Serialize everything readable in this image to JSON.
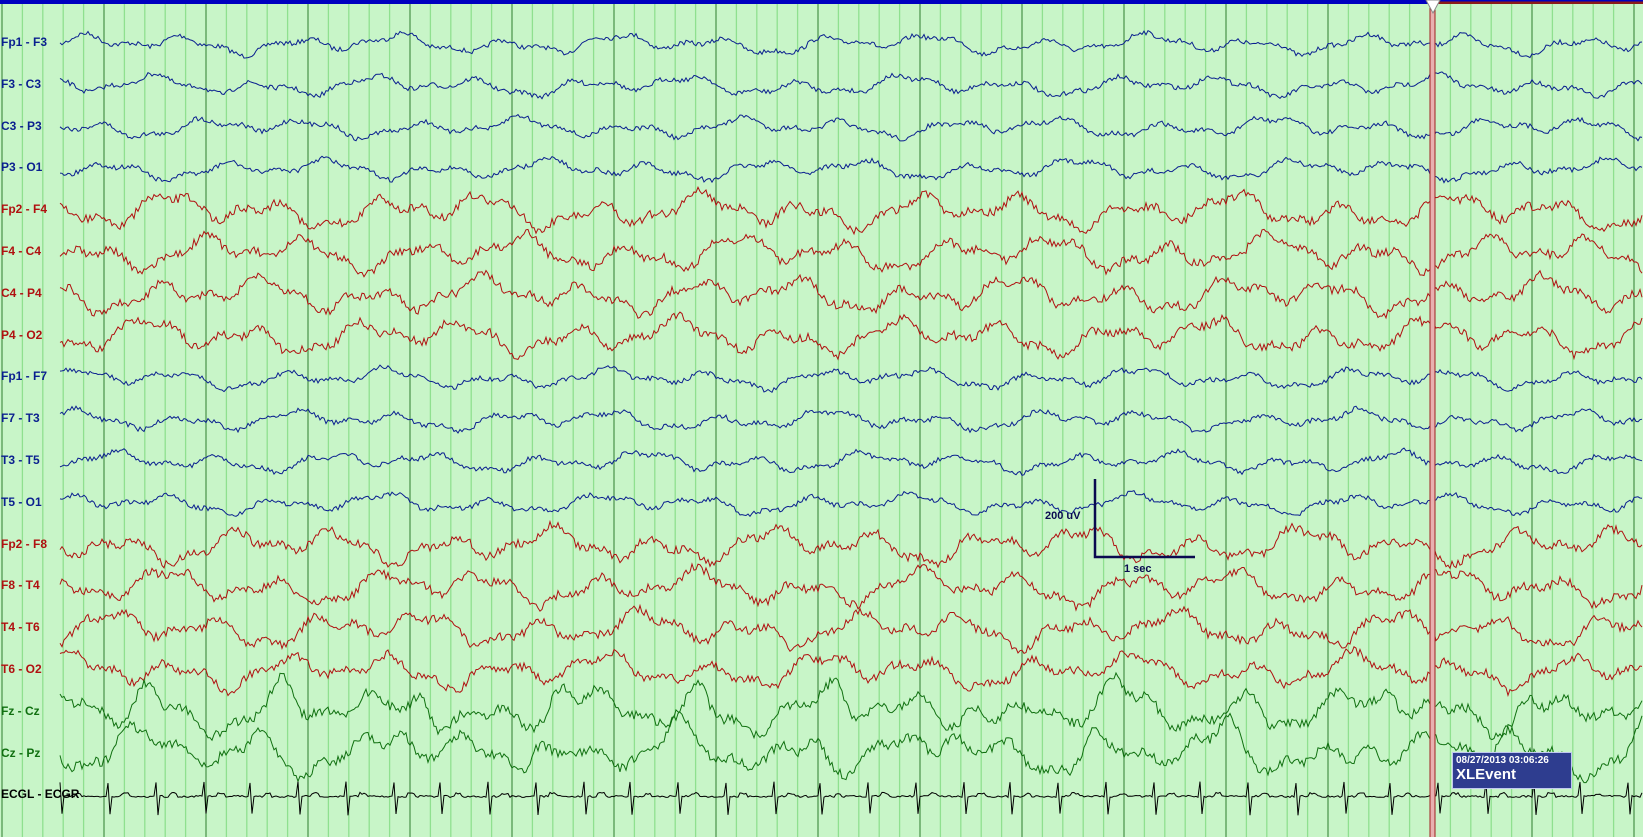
{
  "montage": {
    "channels": [
      {
        "label": "Fp1 - F3",
        "color": "#0a1f8f"
      },
      {
        "label": "F3 - C3",
        "color": "#0a1f8f"
      },
      {
        "label": "C3 - P3",
        "color": "#0a1f8f"
      },
      {
        "label": "P3 - O1",
        "color": "#0a1f8f"
      },
      {
        "label": "Fp2 - F4",
        "color": "#b01010"
      },
      {
        "label": "F4 - C4",
        "color": "#b01010"
      },
      {
        "label": "C4 - P4",
        "color": "#b01010"
      },
      {
        "label": "P4 - O2",
        "color": "#b01010"
      },
      {
        "label": "Fp1 - F7",
        "color": "#0a1f8f"
      },
      {
        "label": "F7 - T3",
        "color": "#0a1f8f"
      },
      {
        "label": "T3 - T5",
        "color": "#0a1f8f"
      },
      {
        "label": "T5 - O1",
        "color": "#0a1f8f"
      },
      {
        "label": "Fp2 - F8",
        "color": "#b01010"
      },
      {
        "label": "F8 - T4",
        "color": "#b01010"
      },
      {
        "label": "T4 - T6",
        "color": "#b01010"
      },
      {
        "label": "T6 - O2",
        "color": "#b01010"
      },
      {
        "label": "Fz - Cz",
        "color": "#107010"
      },
      {
        "label": "Cz - Pz",
        "color": "#107010"
      },
      {
        "label": "ECGL - ECGR",
        "color": "#000000"
      }
    ]
  },
  "scale": {
    "amplitude_label": "200 uV",
    "time_label": "1 sec"
  },
  "event": {
    "timestamp": "08/27/2013 03:06:26",
    "name": "XLEvent"
  },
  "colors": {
    "background": "#c8f5c8",
    "grid_minor": "#8fe08f",
    "grid_major": "#2e7d2e",
    "timeline": "#0000c0",
    "event_marker": "#a02020"
  }
}
